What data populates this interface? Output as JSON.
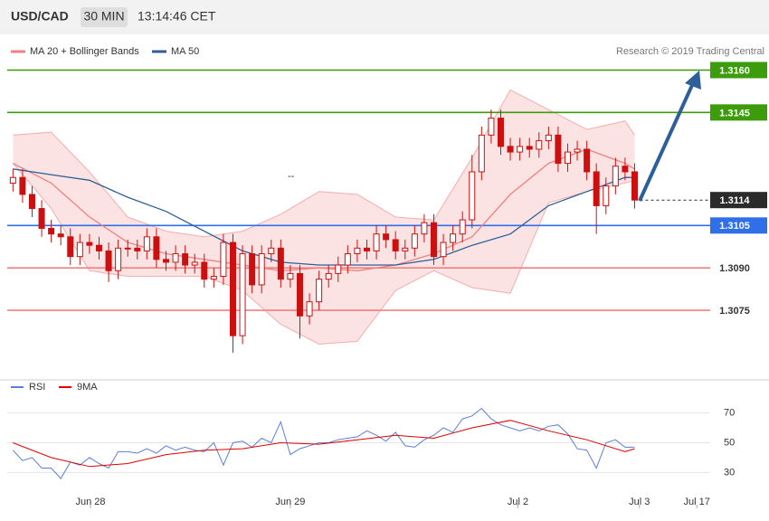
{
  "chart_data": [
    {
      "type": "candlestick",
      "title": "USD/CAD",
      "subtitle": "30 MIN",
      "timestamp": "13:14:46 CET",
      "credit": "Research © 2019 Trading Central",
      "annotation": "--",
      "candle_color": "#cc1010",
      "open": [
        1.312,
        1.3122,
        1.3116,
        1.3111,
        1.3104,
        1.3102,
        1.3101,
        1.3094,
        1.3099,
        1.3098,
        1.3096,
        1.3089,
        1.3097,
        1.3097,
        1.3096,
        1.3101,
        1.3093,
        1.3092,
        1.3095,
        1.3091,
        1.3092,
        1.3086,
        1.3087,
        1.3099,
        1.3066,
        1.3095,
        1.3084,
        1.3095,
        1.3097,
        1.3086,
        1.3088,
        1.3073,
        1.3078,
        1.3086,
        1.3088,
        1.3091,
        1.3095,
        1.3097,
        1.3096,
        1.3102,
        1.31,
        1.3096,
        1.3097,
        1.3102,
        1.3106,
        1.3094,
        1.3099,
        1.3102,
        1.3107,
        1.3124,
        1.3137,
        1.3143,
        1.3133,
        1.3131,
        1.3133,
        1.3132,
        1.3135,
        1.3137,
        1.3127,
        1.3131,
        1.3132,
        1.3124,
        1.3112,
        1.3119,
        1.3126,
        1.3124
      ],
      "high": [
        1.3125,
        1.3125,
        1.3119,
        1.3114,
        1.3107,
        1.3105,
        1.3104,
        1.3102,
        1.3102,
        1.3101,
        1.3099,
        1.31,
        1.31,
        1.31,
        1.3104,
        1.3104,
        1.3096,
        1.3098,
        1.3098,
        1.3095,
        1.3095,
        1.309,
        1.3102,
        1.3102,
        1.3098,
        1.3098,
        1.3098,
        1.31,
        1.31,
        1.3091,
        1.3091,
        1.3081,
        1.3089,
        1.3091,
        1.3094,
        1.3098,
        1.31,
        1.31,
        1.3105,
        1.3105,
        1.3103,
        1.31,
        1.3105,
        1.3109,
        1.3109,
        1.3102,
        1.3105,
        1.311,
        1.313,
        1.314,
        1.3146,
        1.3146,
        1.3136,
        1.3136,
        1.3136,
        1.3138,
        1.314,
        1.314,
        1.3134,
        1.3135,
        1.3135,
        1.3127,
        1.3122,
        1.3129,
        1.3129,
        1.3127
      ],
      "low": [
        1.3117,
        1.3113,
        1.3108,
        1.3101,
        1.3099,
        1.3098,
        1.3091,
        1.3091,
        1.3095,
        1.3093,
        1.3085,
        1.3086,
        1.3094,
        1.3093,
        1.3093,
        1.309,
        1.3089,
        1.3089,
        1.3088,
        1.3088,
        1.3083,
        1.3083,
        1.3084,
        1.306,
        1.3063,
        1.3081,
        1.3081,
        1.3092,
        1.3083,
        1.3083,
        1.3065,
        1.307,
        1.3075,
        1.3083,
        1.3085,
        1.3088,
        1.3092,
        1.3093,
        1.3093,
        1.3097,
        1.3093,
        1.3093,
        1.3094,
        1.3099,
        1.3091,
        1.3091,
        1.3096,
        1.3099,
        1.3104,
        1.3121,
        1.3134,
        1.313,
        1.3128,
        1.3128,
        1.3129,
        1.3129,
        1.3132,
        1.3124,
        1.3124,
        1.3128,
        1.3121,
        1.3102,
        1.3109,
        1.3116,
        1.3121,
        1.3111
      ],
      "close": [
        1.3122,
        1.3116,
        1.3111,
        1.3104,
        1.3102,
        1.3101,
        1.3094,
        1.3099,
        1.3098,
        1.3096,
        1.3089,
        1.3097,
        1.3097,
        1.3096,
        1.3101,
        1.3093,
        1.3092,
        1.3095,
        1.3091,
        1.3092,
        1.3086,
        1.3087,
        1.3099,
        1.3066,
        1.3095,
        1.3084,
        1.3095,
        1.3097,
        1.3086,
        1.3088,
        1.3073,
        1.3078,
        1.3086,
        1.3088,
        1.3091,
        1.3095,
        1.3097,
        1.3096,
        1.3102,
        1.31,
        1.3096,
        1.3097,
        1.3102,
        1.3106,
        1.3094,
        1.3099,
        1.3102,
        1.3107,
        1.3124,
        1.3137,
        1.3143,
        1.3133,
        1.3131,
        1.3133,
        1.3132,
        1.3135,
        1.3137,
        1.3127,
        1.3131,
        1.3132,
        1.3124,
        1.3112,
        1.3119,
        1.3126,
        1.3124,
        1.3114
      ],
      "series": [
        {
          "name": "MA 20 + Bollinger Bands",
          "color": "#f08080",
          "x": [
            0,
            4,
            8,
            12,
            16,
            20,
            24,
            28,
            32,
            36,
            40,
            44,
            48,
            52,
            56,
            60,
            64,
            65
          ],
          "values": [
            1.3127,
            1.312,
            1.3108,
            1.3099,
            1.3095,
            1.3093,
            1.3091,
            1.3089,
            1.309,
            1.3089,
            1.3091,
            1.3095,
            1.3101,
            1.3116,
            1.3127,
            1.3132,
            1.3127,
            1.3125
          ],
          "upper": [
            1.3137,
            1.3138,
            1.3124,
            1.3108,
            1.3103,
            1.3101,
            1.3103,
            1.3109,
            1.3117,
            1.3116,
            1.3108,
            1.3107,
            1.3129,
            1.3153,
            1.3146,
            1.3139,
            1.3142,
            1.3137
          ],
          "lower": [
            1.3127,
            1.3111,
            1.3089,
            1.3087,
            1.3087,
            1.3087,
            1.3082,
            1.307,
            1.3063,
            1.3064,
            1.3082,
            1.3089,
            1.3083,
            1.3081,
            1.3113,
            1.3117,
            1.312,
            1.3121
          ]
        },
        {
          "name": "MA 50",
          "color": "#2d5f99",
          "x": [
            0,
            4,
            8,
            12,
            16,
            20,
            24,
            28,
            32,
            36,
            40,
            44,
            48,
            52,
            56,
            60,
            64,
            65
          ],
          "values": [
            1.3125,
            1.3123,
            1.3121,
            1.3115,
            1.311,
            1.3103,
            1.3096,
            1.3092,
            1.3091,
            1.3091,
            1.3091,
            1.3093,
            1.3098,
            1.3102,
            1.3112,
            1.3117,
            1.3122,
            1.3122
          ]
        }
      ],
      "levels": [
        {
          "value": 1.316,
          "label": "1.3160",
          "color": "#3c9c0c",
          "boxed": true
        },
        {
          "value": 1.3145,
          "label": "1.3145",
          "color": "#3c9c0c",
          "boxed": true
        },
        {
          "value": 1.3114,
          "label": "1.3114",
          "color": "#2b2b2b",
          "boxed": true,
          "dashed": true
        },
        {
          "value": 1.3105,
          "label": "1.3105",
          "color": "#2f6fe8",
          "boxed": true
        },
        {
          "value": 1.309,
          "label": "1.3090",
          "color": "#f08080",
          "boxed": false
        },
        {
          "value": 1.3075,
          "label": "1.3075",
          "color": "#f08080",
          "boxed": false
        }
      ],
      "xlim": [
        -0.6,
        72.9
      ],
      "ylim": [
        1.3051,
        1.3172
      ]
    },
    {
      "type": "line",
      "series": [
        {
          "name": "RSI",
          "color": "#5b7fd6",
          "values": [
            45,
            38,
            40,
            33,
            33,
            26,
            37,
            35,
            40,
            36,
            33,
            44,
            44,
            43,
            46,
            43,
            48,
            45,
            47,
            45,
            44,
            50,
            35,
            50,
            51,
            47,
            53,
            50,
            64,
            42,
            46,
            48,
            50,
            50,
            52,
            53,
            54,
            58,
            55,
            51,
            57,
            48,
            47,
            52,
            55,
            60,
            57,
            66,
            68,
            73,
            66,
            62,
            60,
            58,
            60,
            58,
            61,
            62,
            56,
            46,
            45,
            33,
            50,
            52,
            47,
            47
          ]
        },
        {
          "name": "9MA",
          "color": "#e00000",
          "x": [
            0,
            4,
            8,
            12,
            16,
            20,
            24,
            28,
            32,
            36,
            40,
            44,
            48,
            52,
            56,
            60,
            64,
            65
          ],
          "values": [
            50,
            40,
            34,
            36,
            42,
            45,
            46,
            50,
            49,
            52,
            55,
            53,
            60,
            65,
            58,
            52,
            44,
            46
          ]
        }
      ],
      "xlim": [
        -0.6,
        72.9
      ],
      "ylim": [
        6,
        80
      ],
      "yticks": [
        30,
        50,
        70
      ],
      "grid": true,
      "xticks": [
        {
          "value": 8.1,
          "label": "Jun 28"
        },
        {
          "value": 29,
          "label": "Jun 29"
        },
        {
          "value": 52.8,
          "label": "Jul 2"
        },
        {
          "value": 65.5,
          "label": "Jul 3"
        },
        {
          "value": 71.5,
          "label": "Jul 17"
        }
      ]
    }
  ]
}
